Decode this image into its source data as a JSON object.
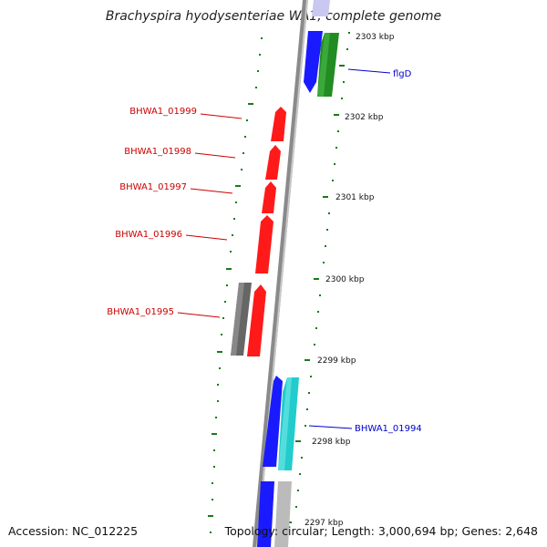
{
  "title": "Brachyspira hyodysenteriae WA1, complete genome",
  "accession": "Accession: NC_012225",
  "summary": "Topology: circular; Length: 3,000,694 bp; Genes: 2,648",
  "colors": {
    "backbone": "#8a8a8a",
    "tick": "#1a7a1a",
    "forward_red": "#ff1a1a",
    "forward_blue": "#1a1aff",
    "reverse_green": "#228b22",
    "reverse_cyan": "#22cccc",
    "grey_gene": "#666666",
    "light_gene": "#bbbbbb",
    "label_red": "#cc0000",
    "label_blue": "#0000cc"
  },
  "scale": [
    {
      "label": "2303 kbp"
    },
    {
      "label": "2302 kbp"
    },
    {
      "label": "2301 kbp"
    },
    {
      "label": "2300 kbp"
    },
    {
      "label": "2299 kbp"
    },
    {
      "label": "2298 kbp"
    },
    {
      "label": "2297 kbp"
    }
  ],
  "genes": [
    {
      "name": "flgD",
      "strand": "reverse",
      "color": "reverse_green"
    },
    {
      "name": "BHWA1_01999",
      "strand": "forward",
      "color": "forward_red"
    },
    {
      "name": "BHWA1_01998",
      "strand": "forward",
      "color": "forward_red"
    },
    {
      "name": "BHWA1_01997",
      "strand": "forward",
      "color": "forward_red"
    },
    {
      "name": "BHWA1_01996",
      "strand": "forward",
      "color": "forward_red"
    },
    {
      "name": "BHWA1_01995",
      "strand": "forward",
      "color": "forward_red"
    },
    {
      "name": "BHWA1_01994",
      "strand": "reverse",
      "color": "reverse_cyan"
    }
  ]
}
